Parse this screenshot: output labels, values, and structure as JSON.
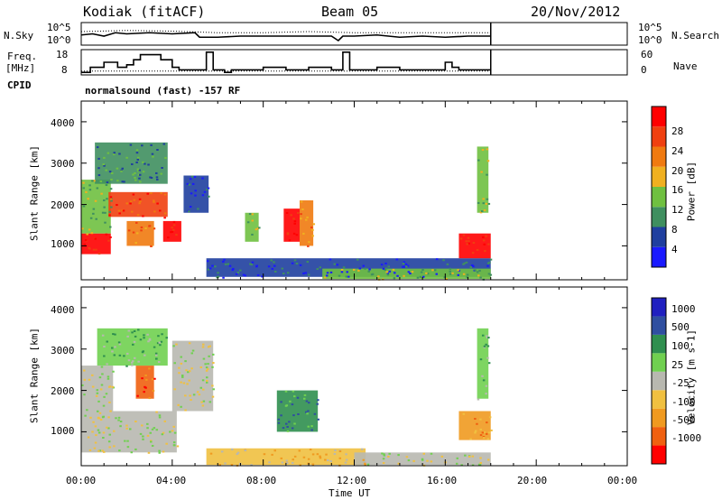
{
  "header": {
    "station": "Kodiak (fitACF)",
    "beam": "Beam 05",
    "date": "20/Nov/2012"
  },
  "side_labels": {
    "nsky": "N.Sky",
    "freq_line1": "Freq.",
    "freq_line2": "[MHz]",
    "cpid": "CPID",
    "nsearch": "N.Search",
    "nave": "Nave"
  },
  "mode_label": "normalsound (fast) -157 RF",
  "colors": {
    "power": [
      "#1a1aff",
      "#1f3f9f",
      "#3f8f5f",
      "#6fc040",
      "#f0b020",
      "#f07a10",
      "#f04010",
      "#ff0000"
    ],
    "velocity": [
      "#ff0000",
      "#f06010",
      "#f09a20",
      "#f0c040",
      "#b8b8b0",
      "#70d050",
      "#2f8f4f",
      "#2f4fa0",
      "#2020c0"
    ]
  },
  "chart_data": [
    {
      "type": "line",
      "panel": "noise",
      "left_ticks": [
        "10^5",
        "10^0"
      ],
      "right_ticks": [
        "10^5",
        "10^0"
      ],
      "x_range_hours": [
        0,
        24
      ],
      "series": [
        {
          "name": "N.Sky",
          "style": "solid",
          "x": [
            0,
            0.5,
            1,
            1.5,
            2,
            3,
            4,
            5,
            5.2,
            6,
            7,
            8,
            10,
            11,
            11.3,
            11.5,
            12,
            13,
            14,
            15,
            16,
            17,
            18
          ],
          "y": [
            0.45,
            0.5,
            0.4,
            0.55,
            0.5,
            0.55,
            0.5,
            0.55,
            0.35,
            0.35,
            0.4,
            0.4,
            0.4,
            0.4,
            0.2,
            0.4,
            0.4,
            0.45,
            0.35,
            0.4,
            0.35,
            0.4,
            0.4
          ]
        },
        {
          "name": "N.Search",
          "style": "dotted",
          "x": [
            0,
            2,
            4,
            6,
            8,
            10,
            12,
            14,
            16,
            18
          ],
          "y": [
            0.6,
            0.65,
            0.62,
            0.55,
            0.55,
            0.6,
            0.55,
            0.55,
            0.55,
            0.55
          ]
        }
      ]
    },
    {
      "type": "line",
      "panel": "frequency",
      "left_ticks": [
        "18",
        "8"
      ],
      "right_ticks": [
        "60",
        "0"
      ],
      "series": [
        {
          "name": "Freq.",
          "style": "step",
          "x": [
            0,
            0.4,
            1.0,
            1.6,
            2.0,
            2.3,
            2.6,
            3.5,
            4.0,
            4.3,
            5.5,
            5.8,
            6.3,
            6.6,
            7.0,
            8.0,
            9.0,
            10.0,
            11.0,
            11.5,
            11.8,
            12.0,
            13.0,
            14.0,
            15.0,
            16.0,
            16.3,
            16.6,
            17.0,
            18.0
          ],
          "y": [
            9,
            11,
            13,
            11,
            12,
            14,
            16,
            14,
            11,
            10,
            17,
            10,
            9,
            10,
            10,
            11,
            10,
            11,
            10,
            17,
            10,
            10,
            11,
            10,
            10,
            13,
            11,
            10,
            10,
            10
          ]
        },
        {
          "name": "Nave",
          "style": "dotted",
          "x": [
            0,
            18
          ],
          "y": [
            9.5,
            9.5
          ]
        }
      ]
    },
    {
      "type": "heatmap",
      "panel": "power",
      "xlabel": "",
      "ylabel": "Slant Range [km]",
      "x_range_hours": [
        0,
        24
      ],
      "ylim": [
        180,
        4500
      ],
      "yticks": [
        1000,
        2000,
        3000,
        4000
      ],
      "colorbar_label": "Power [dB]",
      "colorbar_ticks": [
        "4",
        "8",
        "12",
        "16",
        "20",
        "24",
        "28"
      ],
      "regions": [
        {
          "x": [
            0,
            1.3
          ],
          "y": [
            800,
            1300
          ],
          "level": 7
        },
        {
          "x": [
            0,
            1.3
          ],
          "y": [
            1300,
            2600
          ],
          "level": 3
        },
        {
          "x": [
            1.2,
            3.8
          ],
          "y": [
            1700,
            2300
          ],
          "level": 6
        },
        {
          "x": [
            2.0,
            3.2
          ],
          "y": [
            1000,
            1600
          ],
          "level": 5
        },
        {
          "x": [
            3.6,
            4.4
          ],
          "y": [
            1100,
            1600
          ],
          "level": 7
        },
        {
          "x": [
            4.5,
            5.6
          ],
          "y": [
            1800,
            2700
          ],
          "level": 1
        },
        {
          "x": [
            0.6,
            3.8
          ],
          "y": [
            2500,
            3500
          ],
          "level": 2
        },
        {
          "x": [
            7.2,
            7.8
          ],
          "y": [
            1100,
            1800
          ],
          "level": 3
        },
        {
          "x": [
            8.9,
            9.6
          ],
          "y": [
            1100,
            1900
          ],
          "level": 7
        },
        {
          "x": [
            9.6,
            10.2
          ],
          "y": [
            1000,
            2100
          ],
          "level": 5
        },
        {
          "x": [
            5.5,
            18.0
          ],
          "y": [
            250,
            700
          ],
          "level": 1
        },
        {
          "x": [
            10.6,
            18.0
          ],
          "y": [
            200,
            450
          ],
          "level": 3
        },
        {
          "x": [
            16.6,
            18.0
          ],
          "y": [
            700,
            1300
          ],
          "level": 7
        },
        {
          "x": [
            17.4,
            17.9
          ],
          "y": [
            1800,
            3400
          ],
          "level": 3
        }
      ]
    },
    {
      "type": "heatmap",
      "panel": "velocity",
      "xlabel": "Time UT",
      "ylabel": "Slant Range [km]",
      "x_range_hours": [
        0,
        24
      ],
      "ylim": [
        180,
        4500
      ],
      "yticks": [
        1000,
        2000,
        3000,
        4000
      ],
      "xticks": [
        "00:00",
        "04:00",
        "08:00",
        "12:00",
        "16:00",
        "20:00",
        "00:00"
      ],
      "colorbar_label": "Velocity [m s-1]",
      "colorbar_ticks": [
        "-1000",
        "-500",
        "-100",
        "-25",
        "25",
        "100",
        "500",
        "1000"
      ],
      "regions": [
        {
          "x": [
            0,
            4.2
          ],
          "y": [
            500,
            1500
          ],
          "level": 4
        },
        {
          "x": [
            0,
            1.4
          ],
          "y": [
            1500,
            2600
          ],
          "level": 4
        },
        {
          "x": [
            4.0,
            5.8
          ],
          "y": [
            1500,
            3200
          ],
          "level": 4
        },
        {
          "x": [
            2.4,
            3.2
          ],
          "y": [
            1800,
            2600
          ],
          "level": 1
        },
        {
          "x": [
            0.7,
            3.8
          ],
          "y": [
            2600,
            3500
          ],
          "level": 5
        },
        {
          "x": [
            8.6,
            10.4
          ],
          "y": [
            1000,
            2000
          ],
          "level": 6
        },
        {
          "x": [
            5.5,
            12.5
          ],
          "y": [
            200,
            600
          ],
          "level": 3
        },
        {
          "x": [
            12.0,
            18.0
          ],
          "y": [
            200,
            500
          ],
          "level": 4
        },
        {
          "x": [
            16.6,
            18.0
          ],
          "y": [
            800,
            1500
          ],
          "level": 2
        },
        {
          "x": [
            17.4,
            17.9
          ],
          "y": [
            1800,
            3500
          ],
          "level": 5
        }
      ]
    }
  ]
}
